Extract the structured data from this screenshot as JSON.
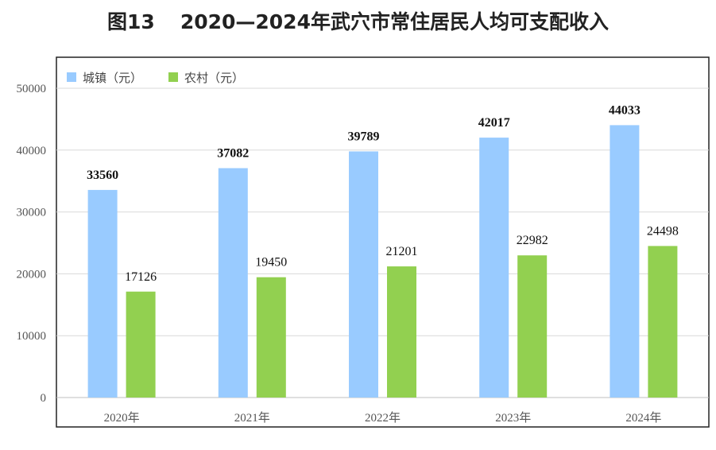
{
  "header": {
    "figure_no": "图13",
    "title": "2020—2024年武穴市常住居民人均可支配收入"
  },
  "chart_data": {
    "type": "bar",
    "title": "2020—2024年武穴市常住居民人均可支配收入",
    "categories": [
      "2020年",
      "2021年",
      "2022年",
      "2023年",
      "2024年"
    ],
    "series": [
      {
        "name": "城镇（元）",
        "color": "#99cbff",
        "values": [
          33560,
          37082,
          39789,
          42017,
          44033
        ]
      },
      {
        "name": "农村（元）",
        "color": "#92d050",
        "values": [
          17126,
          19450,
          21201,
          22982,
          24498
        ]
      }
    ],
    "ylim": [
      0,
      50000
    ],
    "yticks": [
      0,
      10000,
      20000,
      30000,
      40000,
      50000
    ],
    "ytick_labels": [
      "0",
      "10000",
      "20000",
      "30000",
      "40000",
      "50000"
    ],
    "grid": true,
    "legend": "top-left",
    "xlabel": "",
    "ylabel": ""
  }
}
